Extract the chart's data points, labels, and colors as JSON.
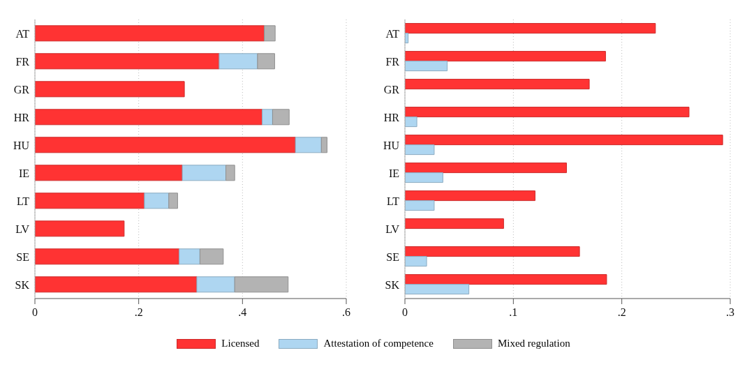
{
  "chart_data": [
    {
      "type": "bar",
      "orientation": "horizontal",
      "stacked": true,
      "categories": [
        "AT",
        "FR",
        "GR",
        "HR",
        "HU",
        "IE",
        "LT",
        "LV",
        "SE",
        "SK"
      ],
      "series": [
        {
          "name": "Licensed",
          "color": "#ff3333",
          "values": [
            0.442,
            0.355,
            0.288,
            0.438,
            0.502,
            0.284,
            0.211,
            0.172,
            0.278,
            0.312
          ]
        },
        {
          "name": "Attestation of competence",
          "color": "#aed6f1",
          "values": [
            null,
            0.074,
            null,
            0.02,
            0.05,
            0.084,
            0.047,
            null,
            0.04,
            0.073
          ]
        },
        {
          "name": "Mixed regulation",
          "color": "#b3b3b3",
          "values": [
            0.021,
            0.033,
            null,
            0.032,
            0.011,
            0.017,
            0.017,
            null,
            0.045,
            0.103
          ]
        }
      ],
      "xlim": [
        0,
        0.6
      ],
      "xticks": [
        {
          "value": 0,
          "label": "0"
        },
        {
          "value": 0.2,
          "label": ".2"
        },
        {
          "value": 0.4,
          "label": ".4"
        },
        {
          "value": 0.6,
          "label": ".6"
        }
      ],
      "grid": "x",
      "legend": "bottom"
    },
    {
      "type": "bar",
      "orientation": "horizontal",
      "categories": [
        "AT",
        "FR",
        "GR",
        "HR",
        "HU",
        "IE",
        "LT",
        "LV",
        "SE",
        "SK"
      ],
      "series": [
        {
          "color": "#ff3333",
          "values": [
            0.231,
            0.185,
            0.17,
            0.262,
            0.293,
            0.149,
            0.12,
            0.091,
            0.161,
            0.186
          ]
        },
        {
          "color": "#aed6f1",
          "values": [
            0.003,
            0.039,
            null,
            0.011,
            0.027,
            0.035,
            0.027,
            null,
            0.02,
            0.059
          ]
        }
      ],
      "xlim": [
        0,
        0.3
      ],
      "xticks": [
        {
          "value": 0,
          "label": "0"
        },
        {
          "value": 0.1,
          "label": ".1"
        },
        {
          "value": 0.2,
          "label": ".2"
        },
        {
          "value": 0.3,
          "label": ".3"
        }
      ],
      "grid": "x"
    }
  ]
}
